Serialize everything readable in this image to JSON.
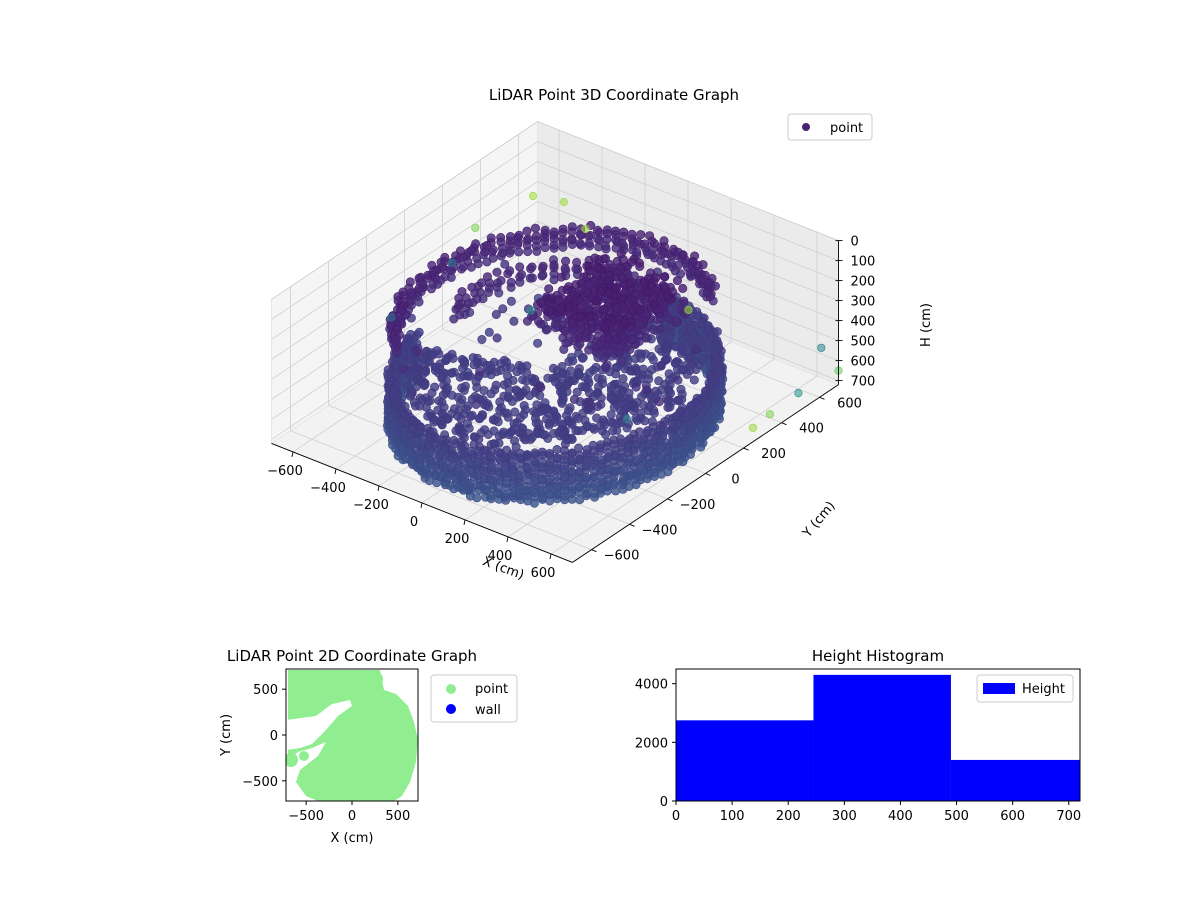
{
  "chart_data": [
    {
      "type": "scatter",
      "projection": "3d",
      "title": "LiDAR Point 3D Coordinate Graph",
      "xlabel": "X (cm)",
      "ylabel": "Y (cm)",
      "zlabel": "H (cm)",
      "xlim": [
        -700,
        700
      ],
      "ylim": [
        -700,
        700
      ],
      "zlim": [
        0,
        720
      ],
      "z_inverted": true,
      "xticks": [
        -600,
        -400,
        -200,
        0,
        200,
        400,
        600
      ],
      "yticks": [
        -600,
        -400,
        -200,
        0,
        200,
        400,
        600
      ],
      "zticks": [
        0,
        100,
        200,
        300,
        400,
        500,
        600,
        700
      ],
      "grid": true,
      "colormap": "viridis",
      "legend": {
        "position": "top-right",
        "entries": [
          "point"
        ]
      },
      "series": [
        {
          "name": "point",
          "color": "#482374",
          "structures": {
            "lower_wall_arc": {
              "radius": 570,
              "start_deg": -170,
              "end_deg": 90,
              "z_top": 480,
              "z_bottom": 720
            },
            "lower_floor_fill": {
              "radius": 520,
              "start_deg": -160,
              "end_deg": 90,
              "z": 480
            },
            "upper_ring": {
              "radius": 560,
              "start_deg": 55,
              "end_deg": 230,
              "z_top": 220,
              "z_bottom": 320
            },
            "upper_cluster": {
              "x": [
                -100,
                320
              ],
              "y": [
                -50,
                380
              ],
              "z": [
                150,
                330
              ]
            }
          },
          "outliers": [
            {
              "x": -650,
              "y": 620,
              "z": 300,
              "c": 0.85
            },
            {
              "x": -560,
              "y": 680,
              "z": 330,
              "c": 0.85
            },
            {
              "x": -680,
              "y": 350,
              "z": 300,
              "c": 0.8
            },
            {
              "x": -700,
              "y": 250,
              "z": 420,
              "c": 0.4
            },
            {
              "x": -690,
              "y": -80,
              "z": 480,
              "c": 0.4
            },
            {
              "x": 600,
              "y": -300,
              "z": 300,
              "c": 0.45
            },
            {
              "x": 620,
              "y": 700,
              "z": 570,
              "c": 0.45
            },
            {
              "x": 690,
              "y": 500,
              "z": 640,
              "c": 0.5
            },
            {
              "x": 690,
              "y": 350,
              "z": 650,
              "c": 0.8
            },
            {
              "x": 700,
              "y": 250,
              "z": 650,
              "c": 0.85
            },
            {
              "x": 700,
              "y": 700,
              "z": 650,
              "c": 0.75
            },
            {
              "x": -300,
              "y": 500,
              "z": 240,
              "c": 0.85
            },
            {
              "x": 250,
              "y": 420,
              "z": 360,
              "c": 0.85
            },
            {
              "x": -200,
              "y": 100,
              "z": 350,
              "c": 0.5
            }
          ]
        }
      ]
    },
    {
      "type": "scatter",
      "title": "LiDAR Point 2D Coordinate Graph",
      "xlabel": "X (cm)",
      "ylabel": "Y (cm)",
      "xlim": [
        -720,
        720
      ],
      "ylim": [
        -720,
        720
      ],
      "xticks": [
        -500,
        0,
        500
      ],
      "yticks": [
        -500,
        0,
        500
      ],
      "legend": {
        "position": "outside-right",
        "entries": [
          "point",
          "wall"
        ]
      },
      "series": [
        {
          "name": "point",
          "color": "#90ee90"
        },
        {
          "name": "wall",
          "color": "#0000ff"
        }
      ]
    },
    {
      "type": "bar",
      "subtype": "histogram",
      "title": "Height Histogram",
      "xlim": [
        0,
        720
      ],
      "ylim": [
        0,
        4500
      ],
      "xticks": [
        0,
        100,
        200,
        300,
        400,
        500,
        600,
        700
      ],
      "yticks": [
        0,
        2000,
        4000
      ],
      "bins": [
        0,
        245,
        490,
        720
      ],
      "counts": [
        2750,
        4300,
        1400
      ],
      "legend": {
        "position": "top-right",
        "entries": [
          "Height"
        ]
      },
      "series": [
        {
          "name": "Height",
          "color": "#0000ff"
        }
      ]
    }
  ]
}
